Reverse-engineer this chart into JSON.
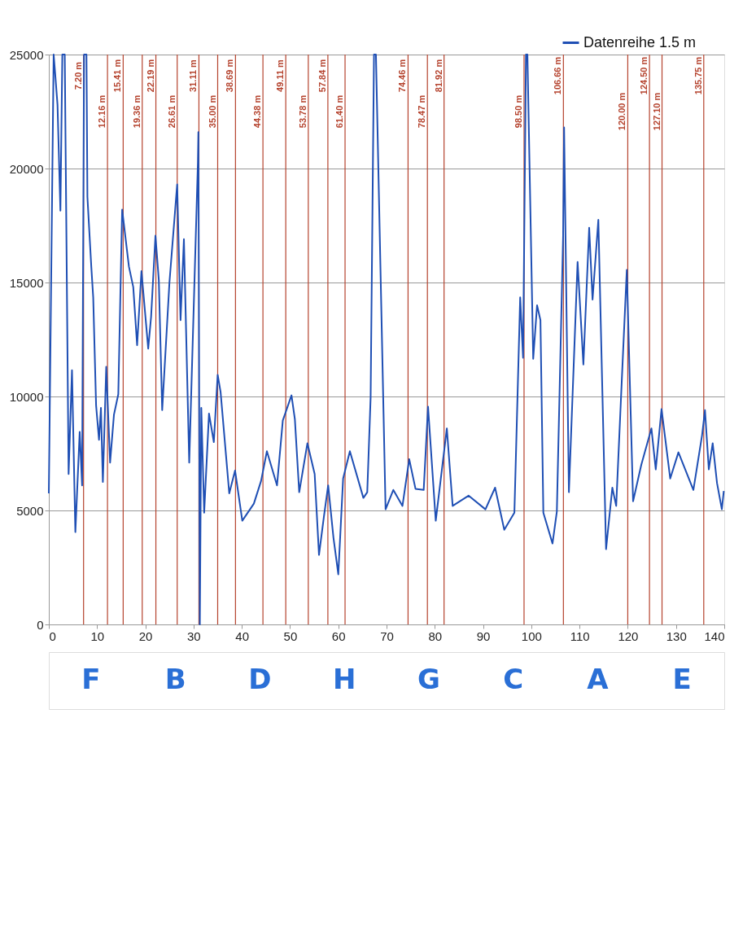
{
  "chart_data": {
    "type": "line",
    "x": [
      0,
      1,
      1.3,
      1.8,
      2.4,
      2.8,
      3.3,
      4.1,
      4.8,
      5.5,
      6.4,
      6.9,
      7.3,
      7.8,
      8.0,
      8.8,
      9.2,
      9.8,
      10.4,
      10.8,
      11.2,
      11.9,
      12.7,
      13.5,
      14.4,
      15.2,
      16.6,
      17.5,
      18.3,
      19.2,
      20.6,
      21.2,
      22.1,
      22.8,
      23.5,
      25.0,
      26.6,
      27.3,
      28.0,
      29.1,
      30.9,
      31.0,
      31.3,
      31.6,
      32.2,
      33.2,
      34.2,
      35.0,
      35.6,
      37.4,
      38.6,
      40.1,
      42.5,
      44.0,
      45.2,
      47.3,
      48.5,
      50.3,
      51.0,
      51.9,
      53.6,
      55.1,
      56.0,
      57.0,
      57.9,
      59.0,
      60.0,
      61.0,
      62.4,
      65.2,
      66.0,
      66.7,
      67.4,
      67.8,
      69.8,
      71.4,
      73.3,
      74.7,
      76.0,
      77.7,
      78.6,
      80.2,
      82.5,
      83.7,
      87.0,
      90.5,
      92.5,
      94.4,
      96.5,
      97.7,
      98.3,
      98.9,
      99.2,
      100.4,
      101.2,
      101.9,
      102.5,
      104.4,
      105.3,
      106.6,
      106.8,
      107.8,
      109.6,
      110.8,
      112.0,
      112.7,
      113.9,
      115.5,
      116.8,
      117.6,
      118.6,
      119.8,
      121.1,
      122.8,
      124.9,
      125.8,
      127.0,
      128.8,
      130.5,
      133.6,
      135.4,
      136.0,
      136.8,
      137.6,
      138.5,
      139.5,
      139.9
    ],
    "series": [
      {
        "name": "Datenreihe 1.5 m",
        "color": "#1f4fb4",
        "values": [
          5750,
          25000,
          24200,
          22800,
          18150,
          25000,
          25000,
          6600,
          11150,
          4050,
          8450,
          6100,
          25000,
          25000,
          18750,
          15700,
          14350,
          9600,
          8100,
          9500,
          6250,
          11300,
          7100,
          9200,
          10100,
          18200,
          15700,
          14800,
          12250,
          15500,
          12100,
          13500,
          17050,
          15100,
          9400,
          15000,
          19300,
          13350,
          16900,
          7100,
          20250,
          21600,
          0,
          9500,
          4900,
          9250,
          8000,
          10950,
          10200,
          5750,
          6750,
          4550,
          5300,
          6300,
          7600,
          6100,
          8950,
          10050,
          9000,
          5800,
          7950,
          6600,
          3050,
          4700,
          6100,
          3800,
          2200,
          6400,
          7600,
          5550,
          5800,
          9950,
          25000,
          25000,
          5050,
          5900,
          5200,
          7250,
          5950,
          5900,
          9550,
          4550,
          8600,
          5200,
          5650,
          5050,
          6000,
          4150,
          4900,
          14350,
          11700,
          25000,
          25000,
          11650,
          14000,
          13350,
          4900,
          3550,
          4950,
          17050,
          21800,
          5800,
          15900,
          11400,
          17400,
          14250,
          17750,
          3300,
          6000,
          5200,
          9950,
          15550,
          5400,
          7000,
          8600,
          6800,
          9450,
          6400,
          7550,
          5900,
          8300,
          9400,
          6800,
          7950,
          6200,
          5050,
          5850
        ]
      }
    ],
    "xlim": [
      0,
      140
    ],
    "xticks": [
      0,
      10,
      20,
      30,
      40,
      50,
      60,
      70,
      80,
      90,
      100,
      110,
      120,
      130,
      140
    ],
    "ylim": [
      0,
      25000
    ],
    "yticks": [
      0,
      5000,
      10000,
      15000,
      20000,
      25000
    ],
    "grid": "y",
    "legend": "top right",
    "marker": "none",
    "line_style": "solid",
    "ref_lines": [
      {
        "axis": "x",
        "value": 7.2,
        "label": "7.20 m",
        "color": "#b5432e"
      },
      {
        "axis": "x",
        "value": 12.16,
        "label": "12.16 m",
        "color": "#b5432e"
      },
      {
        "axis": "x",
        "value": 15.41,
        "label": "15.41 m",
        "color": "#b5432e"
      },
      {
        "axis": "x",
        "value": 19.36,
        "label": "19.36 m",
        "color": "#b5432e"
      },
      {
        "axis": "x",
        "value": 22.19,
        "label": "22.19 m",
        "color": "#b5432e"
      },
      {
        "axis": "x",
        "value": 26.61,
        "label": "26.61 m",
        "color": "#b5432e"
      },
      {
        "axis": "x",
        "value": 31.11,
        "label": "31.11 m",
        "color": "#b5432e"
      },
      {
        "axis": "x",
        "value": 35.0,
        "label": "35.00 m",
        "color": "#b5432e"
      },
      {
        "axis": "x",
        "value": 38.69,
        "label": "38.69 m",
        "color": "#b5432e"
      },
      {
        "axis": "x",
        "value": 44.38,
        "label": "44.38 m",
        "color": "#b5432e"
      },
      {
        "axis": "x",
        "value": 49.11,
        "label": "49.11 m",
        "color": "#b5432e"
      },
      {
        "axis": "x",
        "value": 53.78,
        "label": "53.78 m",
        "color": "#b5432e"
      },
      {
        "axis": "x",
        "value": 57.84,
        "label": "57.84 m",
        "color": "#b5432e"
      },
      {
        "axis": "x",
        "value": 61.4,
        "label": "61.40 m",
        "color": "#b5432e"
      },
      {
        "axis": "x",
        "value": 74.46,
        "label": "74.46 m",
        "color": "#b5432e"
      },
      {
        "axis": "x",
        "value": 78.47,
        "label": "78.47 m",
        "color": "#b5432e"
      },
      {
        "axis": "x",
        "value": 81.92,
        "label": "81.92 m",
        "color": "#b5432e"
      },
      {
        "axis": "x",
        "value": 98.5,
        "label": "98.50 m",
        "color": "#b5432e"
      },
      {
        "axis": "x",
        "value": 106.66,
        "label": "106.66 m",
        "color": "#b5432e"
      },
      {
        "axis": "x",
        "value": 120.0,
        "label": "120.00 m",
        "color": "#b5432e"
      },
      {
        "axis": "x",
        "value": 124.5,
        "label": "124.50 m",
        "color": "#b5432e"
      },
      {
        "axis": "x",
        "value": 127.1,
        "label": "127.10 m",
        "color": "#b5432e"
      },
      {
        "axis": "x",
        "value": 135.75,
        "label": "135.75 m",
        "color": "#b5432e"
      }
    ],
    "annotations": [
      "F",
      "B",
      "D",
      "H",
      "G",
      "C",
      "A",
      "E"
    ]
  }
}
